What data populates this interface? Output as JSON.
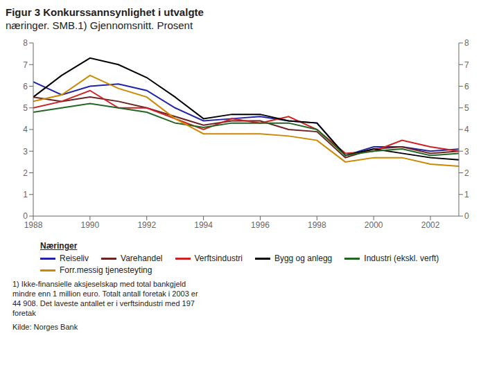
{
  "chart_data": {
    "type": "line",
    "title": "Figur 3 Konkurssannsynlighet i utvalgte",
    "subtitle": "næringer. SMB.1) Gjennomsnitt. Prosent",
    "x": [
      1988,
      1989,
      1990,
      1991,
      1992,
      1993,
      1994,
      1995,
      1996,
      1997,
      1998,
      1999,
      2000,
      2001,
      2002,
      2003
    ],
    "series": [
      {
        "name": "Reiseliv",
        "color": "#2222aa",
        "values": [
          6.2,
          5.6,
          6.0,
          6.1,
          5.8,
          5.0,
          4.4,
          4.5,
          4.6,
          4.4,
          4.3,
          2.8,
          3.2,
          3.2,
          3.0,
          3.1
        ]
      },
      {
        "name": "Varehandel",
        "color": "#6b2222",
        "values": [
          5.5,
          5.3,
          5.5,
          5.3,
          5.0,
          4.6,
          4.2,
          4.4,
          4.4,
          4.0,
          3.9,
          2.7,
          3.1,
          3.2,
          2.9,
          3.0
        ]
      },
      {
        "name": "Verftsindustri",
        "color": "#cc2222",
        "values": [
          5.0,
          5.3,
          5.8,
          5.0,
          5.0,
          4.5,
          4.0,
          4.5,
          4.3,
          4.6,
          4.0,
          2.9,
          3.0,
          3.5,
          3.2,
          3.0
        ]
      },
      {
        "name": "Bygg og anlegg",
        "color": "#000000",
        "values": [
          5.5,
          6.5,
          7.3,
          7.0,
          6.4,
          5.5,
          4.5,
          4.7,
          4.7,
          4.4,
          4.3,
          2.8,
          3.1,
          2.9,
          2.7,
          2.6
        ]
      },
      {
        "name": "Industri (ekskl. verft)",
        "color": "#226622",
        "values": [
          4.8,
          5.0,
          5.2,
          5.0,
          4.8,
          4.3,
          4.1,
          4.3,
          4.3,
          4.3,
          4.0,
          2.8,
          3.0,
          3.1,
          2.8,
          2.9
        ]
      },
      {
        "name": "Forr.messig tjenesteyting",
        "color": "#cc8800",
        "values": [
          5.3,
          5.6,
          6.5,
          5.9,
          5.5,
          4.5,
          3.8,
          3.8,
          3.8,
          3.7,
          3.5,
          2.5,
          2.7,
          2.7,
          2.4,
          2.3
        ]
      }
    ],
    "xlim": [
      1988,
      2003
    ],
    "xticks": [
      1988,
      1990,
      1992,
      1994,
      1996,
      1998,
      2000,
      2002
    ],
    "ylim": [
      0,
      8
    ],
    "yticks": [
      0,
      1,
      2,
      3,
      4,
      5,
      6,
      7,
      8
    ],
    "y2lim": [
      0,
      8
    ],
    "y2ticks": [
      0,
      1,
      2,
      3,
      4,
      5,
      6,
      7,
      8
    ],
    "grid": false,
    "legend": "bottom",
    "annotations": [
      "Næringer",
      "1) Ikke-finansielle aksjeselskap med total bankgjeld\nmindre enn 1 million euro. Totalt antall foretak i 2003 er\n44 908. Det laveste antallet er i verftsindustri med 197\nforetak",
      "Kilde: Norges Bank"
    ]
  }
}
